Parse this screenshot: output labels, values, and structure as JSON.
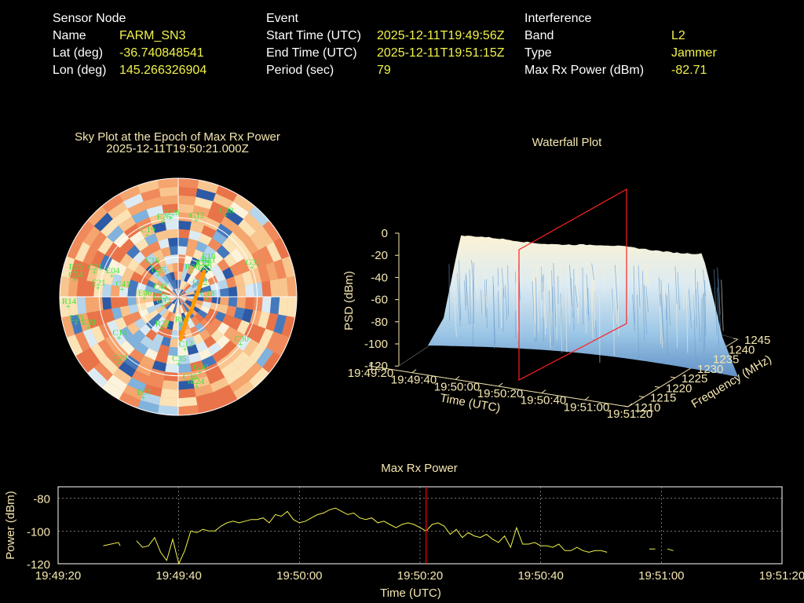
{
  "header": {
    "sensor": {
      "heading": "Sensor Node",
      "rows": [
        {
          "label": "Name",
          "value": "FARM_SN3"
        },
        {
          "label": "Lat (deg)",
          "value": "-36.740848541"
        },
        {
          "label": "Lon (deg)",
          "value": "145.266326904"
        }
      ]
    },
    "event": {
      "heading": "Event",
      "rows": [
        {
          "label": "Start Time (UTC)",
          "value": "2025-12-11T19:49:56Z"
        },
        {
          "label": "End Time (UTC)",
          "value": "2025-12-11T19:51:15Z"
        },
        {
          "label": "Period (sec)",
          "value": "79"
        }
      ]
    },
    "interference": {
      "heading": "Interference",
      "rows": [
        {
          "label": "Band",
          "value": "L2"
        },
        {
          "label": "Type",
          "value": "Jammer"
        },
        {
          "label": "Max Rx Power (dBm)",
          "value": "-82.71"
        }
      ]
    }
  },
  "colors": {
    "background": "#000000",
    "label": "#ffffff",
    "value": "#f2f24a",
    "title": "#f5e7b0",
    "satellite": "#39e639",
    "marker": "#ff0000",
    "trace": "#f2f24a",
    "track": "#ff9a00"
  },
  "chart_data": [
    {
      "type": "heatmap",
      "title": "Sky Plot at the Epoch of Max Rx Power",
      "subtitle": "2025-12-11T19:50:21.000Z",
      "satellites": [
        "R06",
        "G22",
        "G25",
        "R13",
        "E21",
        "C35",
        "C22",
        "E25",
        "C32",
        "C12",
        "R22",
        "E23",
        "R08",
        "E24",
        "E26",
        "C36",
        "C42",
        "C41",
        "E04",
        "C16",
        "G10",
        "C24",
        "C38",
        "C30",
        "E06",
        "C25",
        "C21",
        "G12",
        "C23",
        "R21",
        "G26",
        "C29",
        "C14",
        "C19",
        "E07",
        "R14",
        "G32",
        "C13",
        "E33",
        "E18"
      ]
    },
    {
      "type": "area",
      "title": "Waterfall Plot",
      "xlabel": "Time (UTC)",
      "ylabel": "Frequency (MHz)",
      "zlabel": "PSD (dBm)",
      "time_ticks": [
        "19:49:20",
        "19:49:40",
        "19:50:00",
        "19:50:20",
        "19:50:40",
        "19:51:00",
        "19:51:20"
      ],
      "freq_ticks": [
        "1210",
        "1215",
        "1220",
        "1225",
        "1230",
        "1235",
        "1240",
        "1245"
      ],
      "psd_ticks": [
        "0",
        "-20",
        "-40",
        "-60",
        "-80",
        "-100",
        "-120"
      ],
      "zlim": [
        -120,
        0
      ],
      "marker_time": "19:50:21"
    },
    {
      "type": "line",
      "title": "Max Rx Power",
      "xlabel": "Time (UTC)",
      "ylabel": "Power (dBm)",
      "x_ticks": [
        "19:49:20",
        "19:49:40",
        "19:50:00",
        "19:50:20",
        "19:50:40",
        "19:51:00",
        "19:51:20"
      ],
      "y_ticks": [
        "-80",
        "-100",
        "-120"
      ],
      "ylim": [
        -120,
        -73
      ],
      "grid": true,
      "marker_seconds": 61,
      "series": [
        {
          "x": [
            7.5,
            10,
            10.3,
            12,
            13,
            14,
            15,
            16,
            17,
            18,
            19,
            20,
            21,
            22,
            23,
            24,
            25,
            26,
            27,
            28,
            29,
            30,
            31,
            32,
            33,
            34,
            35,
            36,
            37,
            38,
            39,
            40,
            41,
            42,
            43,
            44,
            45,
            46,
            47,
            48,
            49,
            50,
            51,
            52,
            53,
            54,
            55,
            56,
            57,
            58,
            59,
            60,
            61,
            62,
            63,
            64,
            65,
            66,
            67,
            68,
            69,
            70,
            71,
            72,
            73,
            74,
            75,
            76,
            77,
            78,
            79,
            80,
            81,
            82,
            83,
            84,
            85,
            86,
            87,
            88,
            89,
            90,
            91,
            92,
            93,
            94,
            95,
            96,
            97,
            98,
            99,
            100,
            101,
            102,
            103,
            104,
            105,
            106,
            107
          ],
          "y": [
            -109,
            -107,
            -109,
            null,
            -106,
            -110,
            -109,
            -104,
            -113,
            -118,
            -105,
            -120,
            -112,
            -100,
            -101,
            -99,
            -100,
            -100,
            -97,
            -95,
            -94,
            -95,
            -94,
            -93,
            -93,
            -92,
            -95,
            -90,
            -91,
            -88,
            -93,
            -95,
            -94,
            -92,
            -90,
            -89,
            -87,
            -86,
            -88,
            -90,
            -89,
            -92,
            -93,
            -92,
            -95,
            -94,
            -96,
            -98,
            -96,
            -95,
            -96,
            -98,
            -100,
            -96,
            -95,
            -97,
            -102,
            -99,
            -104,
            -101,
            -103,
            -104,
            -102,
            -105,
            -107,
            -103,
            -110,
            -98,
            -108,
            -108,
            -107,
            -109,
            -109,
            -110,
            -108,
            -112,
            -112,
            -110,
            -112,
            -113,
            -112,
            -112,
            -113,
            null,
            null,
            null,
            null,
            null,
            null,
            -111,
            -111,
            null,
            -111,
            -112,
            null,
            null,
            null,
            null,
            null
          ],
          "segments_note": ""
        }
      ]
    }
  ]
}
